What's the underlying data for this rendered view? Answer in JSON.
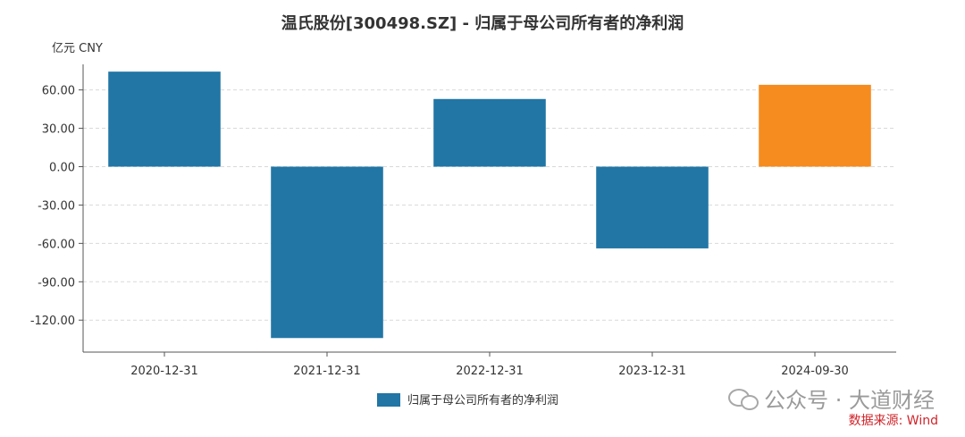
{
  "chart_data": {
    "type": "bar",
    "title": "温氏股份[300498.SZ] - 归属于母公司所有者的净利润",
    "ylabel": "亿元  CNY",
    "xlabel": "",
    "categories": [
      "2020-12-31",
      "2021-12-31",
      "2022-12-31",
      "2023-12-31",
      "2024-09-30"
    ],
    "series": [
      {
        "name": "归属于母公司所有者的净利润",
        "values": [
          74.3,
          -134.0,
          52.9,
          -63.9,
          64.0
        ]
      }
    ],
    "highlight_index": 4,
    "colors": {
      "primary": "#2176a5",
      "highlight": "#f68b1f"
    },
    "yticks": [
      60,
      30,
      0,
      -30,
      -60,
      -90,
      -120
    ],
    "ytick_labels": [
      "60.00",
      "30.00",
      "0.00",
      "-30.00",
      "-60.00",
      "-90.00",
      "-120.00"
    ],
    "ylim": [
      -145,
      80
    ],
    "grid": true,
    "legend_position": "bottom-center"
  },
  "watermark": {
    "icon": "wechat-icon",
    "text": "公众号 · 大道财经"
  },
  "source": "数据来源: Wind"
}
